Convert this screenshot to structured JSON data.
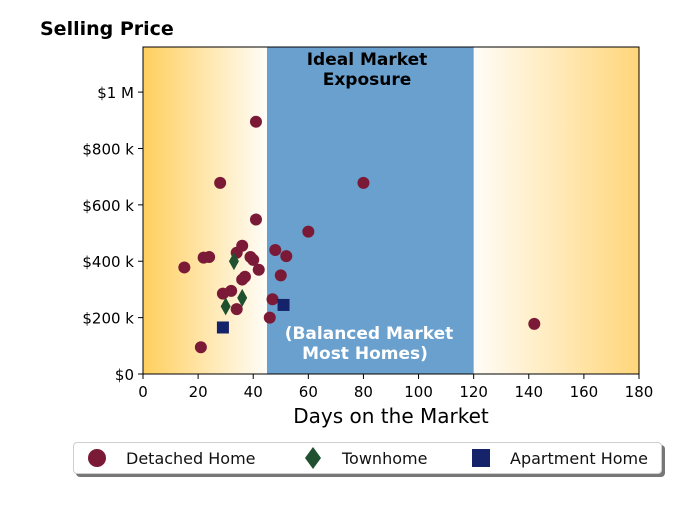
{
  "chart_data": {
    "type": "scatter",
    "title": "Selling Price",
    "xlabel": "Days on the Market",
    "ylabel": "",
    "xlim": [
      0,
      180
    ],
    "ylim": [
      0,
      1160000
    ],
    "x_ticks": [
      0,
      20,
      40,
      60,
      80,
      100,
      120,
      140,
      160,
      180
    ],
    "y_ticks": [
      0,
      200000,
      400000,
      600000,
      800000,
      1000000
    ],
    "y_tick_labels": [
      "$0",
      "$200 k",
      "$400 k",
      "$600 k",
      "$800 k",
      "$1 M"
    ],
    "regions": [
      {
        "label": "Ideal Market Exposure",
        "sublabel": "(Balanced Market Most Homes)",
        "x_range": [
          45,
          120
        ],
        "color": "#6aa0ce"
      }
    ],
    "annotations": {
      "top": [
        "Ideal Market",
        "Exposure"
      ],
      "bottom": [
        "(Balanced Market",
        "Most Homes)"
      ]
    },
    "series": [
      {
        "name": "Detached Home",
        "marker": "circle",
        "color": "#7b1a37",
        "points": [
          [
            21,
            95000
          ],
          [
            15,
            378000
          ],
          [
            22,
            413000
          ],
          [
            24,
            415000
          ],
          [
            28,
            678000
          ],
          [
            29,
            285000
          ],
          [
            32,
            295000
          ],
          [
            34,
            230000
          ],
          [
            34,
            430000
          ],
          [
            36,
            335000
          ],
          [
            36,
            455000
          ],
          [
            37,
            345000
          ],
          [
            39,
            415000
          ],
          [
            40,
            405000
          ],
          [
            41,
            895000
          ],
          [
            41,
            548000
          ],
          [
            42,
            370000
          ],
          [
            46,
            200000
          ],
          [
            47,
            265000
          ],
          [
            48,
            440000
          ],
          [
            50,
            350000
          ],
          [
            52,
            418000
          ],
          [
            60,
            505000
          ],
          [
            80,
            678000
          ],
          [
            142,
            178000
          ]
        ]
      },
      {
        "name": "Townhome",
        "marker": "diamond",
        "color": "#1f5130",
        "points": [
          [
            30,
            240000
          ],
          [
            33,
            400000
          ],
          [
            36,
            270000
          ]
        ]
      },
      {
        "name": "Apartment Home",
        "marker": "square",
        "color": "#14236a",
        "points": [
          [
            29,
            165000
          ],
          [
            51,
            245000
          ]
        ]
      }
    ],
    "legend": {
      "position": "bottom"
    }
  }
}
